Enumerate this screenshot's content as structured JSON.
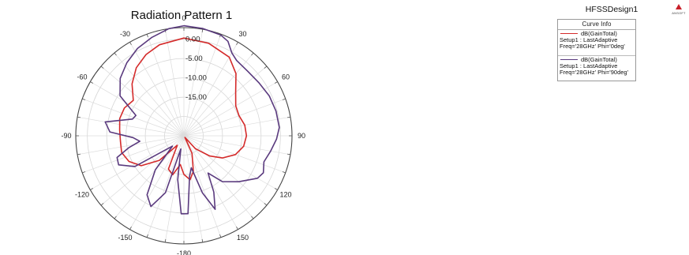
{
  "chart_data": {
    "type": "polar-line",
    "title": "Radiation Pattern 1",
    "angle_ticks": [
      "0",
      "30",
      "60",
      "90",
      "120",
      "150",
      "-180",
      "-150",
      "-120",
      "-90",
      "-60",
      "-30"
    ],
    "radial_ticks": [
      "0.00",
      "-5.00",
      "-10.00",
      "-15.00"
    ],
    "rlim": [
      -25,
      3
    ],
    "grid": true,
    "series": [
      {
        "name": "dB(GainTotal)",
        "info": [
          "Setup1 : LastAdaptive",
          "Freq='28GHz' Phi='0deg'"
        ],
        "color": "#d42a2a",
        "points": [
          [
            0,
            0.3
          ],
          [
            15,
            -0.2
          ],
          [
            30,
            -1.5
          ],
          [
            40,
            -4.0
          ],
          [
            50,
            -7.5
          ],
          [
            60,
            -9.5
          ],
          [
            70,
            -9.8
          ],
          [
            80,
            -9.0
          ],
          [
            90,
            -8.8
          ],
          [
            100,
            -9.3
          ],
          [
            110,
            -10.8
          ],
          [
            120,
            -13.5
          ],
          [
            128,
            -16.5
          ],
          [
            138,
            -20.5
          ],
          [
            147,
            -24.5
          ],
          [
            155,
            -20.0
          ],
          [
            165,
            -15.5
          ],
          [
            172,
            -13.5
          ],
          [
            180,
            -15.0
          ],
          [
            187,
            -17.5
          ],
          [
            196,
            -14.5
          ],
          [
            205,
            -15.5
          ],
          [
            215,
            -22.0
          ],
          [
            225,
            -16.0
          ],
          [
            235,
            -11.5
          ],
          [
            245,
            -9.3
          ],
          [
            255,
            -8.3
          ],
          [
            265,
            -8.5
          ],
          [
            275,
            -8.3
          ],
          [
            285,
            -7.8
          ],
          [
            295,
            -8.0
          ],
          [
            305,
            -9.0
          ],
          [
            315,
            -6.0
          ],
          [
            325,
            -3.5
          ],
          [
            335,
            -1.8
          ],
          [
            345,
            -0.6
          ],
          [
            360,
            0.3
          ]
        ]
      },
      {
        "name": "dB(GainTotal)",
        "info": [
          "Setup1 : LastAdaptive",
          "Freq='28GHz' Phi='90deg'"
        ],
        "color": "#5a3a7e",
        "points": [
          [
            0,
            3.5
          ],
          [
            10,
            3.2
          ],
          [
            20,
            2.8
          ],
          [
            25,
            2.0
          ],
          [
            30,
            -0.2
          ],
          [
            35,
            -1.2
          ],
          [
            45,
            -1.5
          ],
          [
            55,
            -1.2
          ],
          [
            65,
            -0.6
          ],
          [
            75,
            -0.3
          ],
          [
            85,
            -0.2
          ],
          [
            92,
            -1.0
          ],
          [
            100,
            -2.2
          ],
          [
            108,
            -3.2
          ],
          [
            115,
            -2.3
          ],
          [
            120,
            -3.0
          ],
          [
            130,
            -6.5
          ],
          [
            140,
            -9.5
          ],
          [
            147,
            -13.5
          ],
          [
            152,
            -8.5
          ],
          [
            157,
            -4.3
          ],
          [
            162,
            -9.5
          ],
          [
            167,
            -16.5
          ],
          [
            172,
            -14.5
          ],
          [
            177,
            -4.8
          ],
          [
            182,
            -4.8
          ],
          [
            188,
            -13.5
          ],
          [
            193,
            -21.5
          ],
          [
            198,
            -9.5
          ],
          [
            205,
            -4.8
          ],
          [
            212,
            -7.0
          ],
          [
            220,
            -13.5
          ],
          [
            228,
            -21.0
          ],
          [
            238,
            -10.0
          ],
          [
            246,
            -6.5
          ],
          [
            252,
            -6.8
          ],
          [
            258,
            -10.5
          ],
          [
            263,
            -13.5
          ],
          [
            268,
            -11.8
          ],
          [
            273,
            -5.8
          ],
          [
            280,
            -4.3
          ],
          [
            288,
            -11.0
          ],
          [
            293,
            -11.5
          ],
          [
            302,
            -5.5
          ],
          [
            312,
            -2.8
          ],
          [
            322,
            -1.0
          ],
          [
            332,
            0.6
          ],
          [
            342,
            1.8
          ],
          [
            352,
            3.0
          ],
          [
            360,
            3.5
          ]
        ]
      }
    ]
  },
  "legend": {
    "design_name": "HFSSDesign1",
    "header": "Curve Info",
    "logo_text": "ANSOFT"
  }
}
